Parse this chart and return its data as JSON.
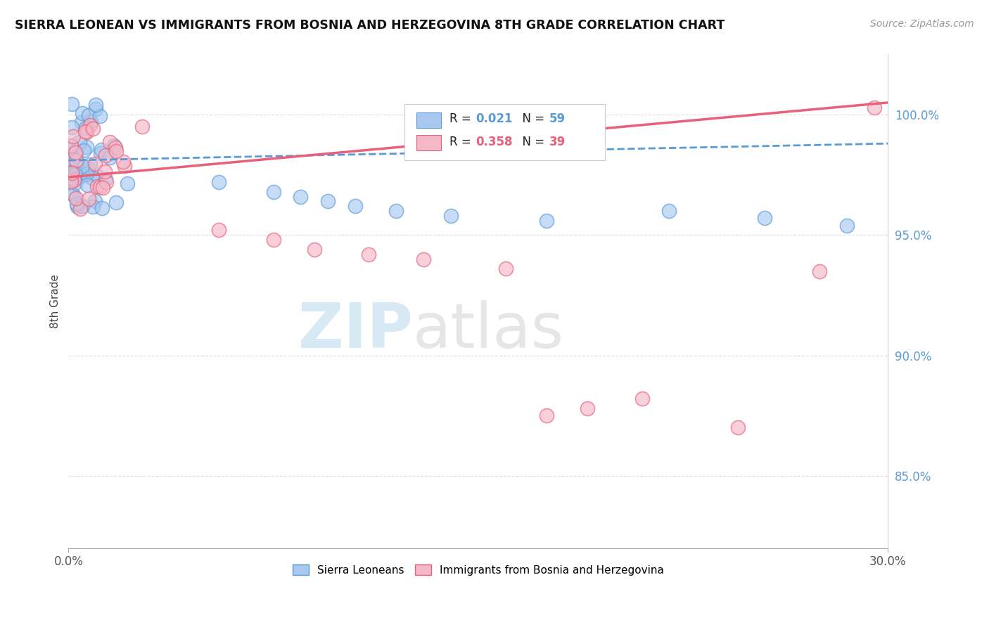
{
  "title": "SIERRA LEONEAN VS IMMIGRANTS FROM BOSNIA AND HERZEGOVINA 8TH GRADE CORRELATION CHART",
  "source": "Source: ZipAtlas.com",
  "ylabel": "8th Grade",
  "xlim": [
    0.0,
    0.3
  ],
  "ylim": [
    0.82,
    1.025
  ],
  "xticks": [
    0.0,
    0.3
  ],
  "xticklabels": [
    "0.0%",
    "30.0%"
  ],
  "yticks": [
    0.85,
    0.9,
    0.95,
    1.0
  ],
  "yticklabels": [
    "85.0%",
    "90.0%",
    "95.0%",
    "100.0%"
  ],
  "blue_fill": "#a8c8f0",
  "blue_edge": "#5b9bd5",
  "pink_fill": "#f4b8c8",
  "pink_edge": "#e8607a",
  "blue_line_color": "#5b9bd5",
  "pink_line_color": "#e8607a",
  "blue_trend_x": [
    0.0,
    0.3
  ],
  "blue_trend_y": [
    0.981,
    0.988
  ],
  "pink_trend_x": [
    0.0,
    0.3
  ],
  "pink_trend_y": [
    0.974,
    1.005
  ],
  "watermark_zip": "ZIP",
  "watermark_atlas": "atlas",
  "background_color": "#ffffff",
  "grid_color": "#dddddd",
  "legend_R_blue": "0.021",
  "legend_N_blue": "59",
  "legend_R_pink": "0.358",
  "legend_N_pink": "39",
  "blue_seed": 10,
  "pink_seed": 20
}
